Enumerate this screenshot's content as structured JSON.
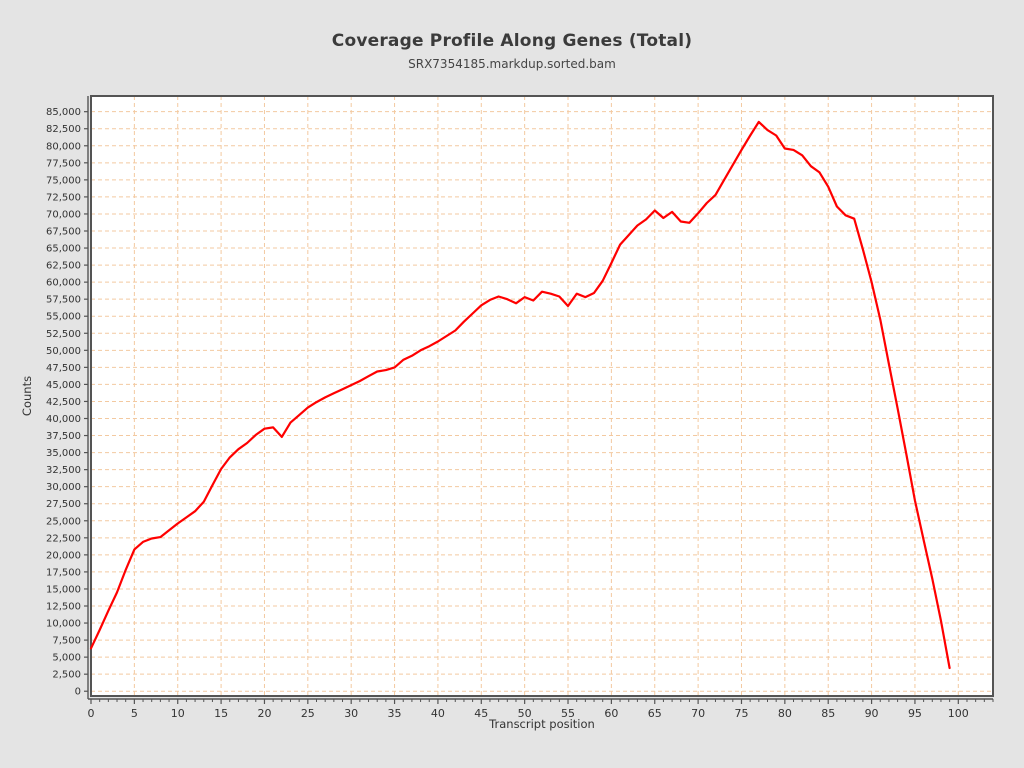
{
  "chart_data": {
    "type": "line",
    "title": "Coverage Profile Along Genes (Total)",
    "subtitle": "SRX7354185.markdup.sorted.bam",
    "xlabel": "Transcript position",
    "ylabel": "Counts",
    "grid": true,
    "legend_position": "none",
    "xlim": [
      0,
      104
    ],
    "ylim": [
      -700,
      87300
    ],
    "x_tick_step_major": 5,
    "x_tick_step_minor": 1,
    "y_tick_step": 2500,
    "x_tick_labels": [
      "0",
      "5",
      "10",
      "15",
      "20",
      "25",
      "30",
      "35",
      "40",
      "45",
      "50",
      "55",
      "60",
      "65",
      "70",
      "75",
      "80",
      "85",
      "90",
      "95",
      "100"
    ],
    "y_tick_labels": [
      "0",
      "2,500",
      "5,000",
      "7,500",
      "10,000",
      "12,500",
      "15,000",
      "17,500",
      "20,000",
      "22,500",
      "25,000",
      "27,500",
      "30,000",
      "32,500",
      "35,000",
      "37,500",
      "40,000",
      "42,500",
      "45,000",
      "47,500",
      "50,000",
      "52,500",
      "55,000",
      "57,500",
      "60,000",
      "62,500",
      "65,000",
      "67,500",
      "70,000",
      "72,500",
      "75,000",
      "77,500",
      "80,000",
      "82,500",
      "85,000"
    ],
    "x": [
      0,
      1,
      2,
      3,
      4,
      5,
      6,
      7,
      8,
      9,
      10,
      11,
      12,
      13,
      14,
      15,
      16,
      17,
      18,
      19,
      20,
      21,
      22,
      23,
      24,
      25,
      26,
      27,
      28,
      29,
      30,
      31,
      32,
      33,
      34,
      35,
      36,
      37,
      38,
      39,
      40,
      41,
      42,
      43,
      44,
      45,
      46,
      47,
      48,
      49,
      50,
      51,
      52,
      53,
      54,
      55,
      56,
      57,
      58,
      59,
      60,
      61,
      62,
      63,
      64,
      65,
      66,
      67,
      68,
      69,
      70,
      71,
      72,
      73,
      74,
      75,
      76,
      77,
      78,
      79,
      80,
      81,
      82,
      83,
      84,
      85,
      86,
      87,
      88,
      89,
      90,
      91,
      92,
      93,
      94,
      95,
      96,
      97,
      98,
      99
    ],
    "series": [
      {
        "name": "Total",
        "color": "#ff0000",
        "values": [
          6300,
          9000,
          11800,
          14500,
          17800,
          20800,
          21900,
          22400,
          22600,
          23600,
          24600,
          25500,
          26400,
          27800,
          30200,
          32600,
          34300,
          35500,
          36400,
          37600,
          38500,
          38700,
          37300,
          39400,
          40500,
          41600,
          42400,
          43100,
          43700,
          44300,
          44900,
          45500,
          46200,
          46900,
          47100,
          47500,
          48600,
          49200,
          50000,
          50600,
          51300,
          52100,
          52900,
          54200,
          55400,
          56600,
          57400,
          57900,
          57500,
          56900,
          57800,
          57300,
          58600,
          58300,
          57900,
          56500,
          58300,
          57800,
          58400,
          60200,
          62800,
          65500,
          66900,
          68300,
          69200,
          70500,
          69400,
          70300,
          68900,
          68700,
          70100,
          71600,
          72800,
          75000,
          77200,
          79400,
          81500,
          83500,
          82300,
          81500,
          79600,
          79400,
          78600,
          77000,
          76100,
          74000,
          71100,
          69800,
          69300,
          64800,
          60000,
          54500,
          48000,
          41500,
          34800,
          28000,
          22200,
          16500,
          10300,
          3400
        ]
      }
    ],
    "colors": {
      "background": "#e4e4e4",
      "plot_background": "#ffffff",
      "gridline": "#f3c9a0",
      "axis": "#545454",
      "tick_text": "#333333",
      "series": "#ff0000"
    }
  }
}
